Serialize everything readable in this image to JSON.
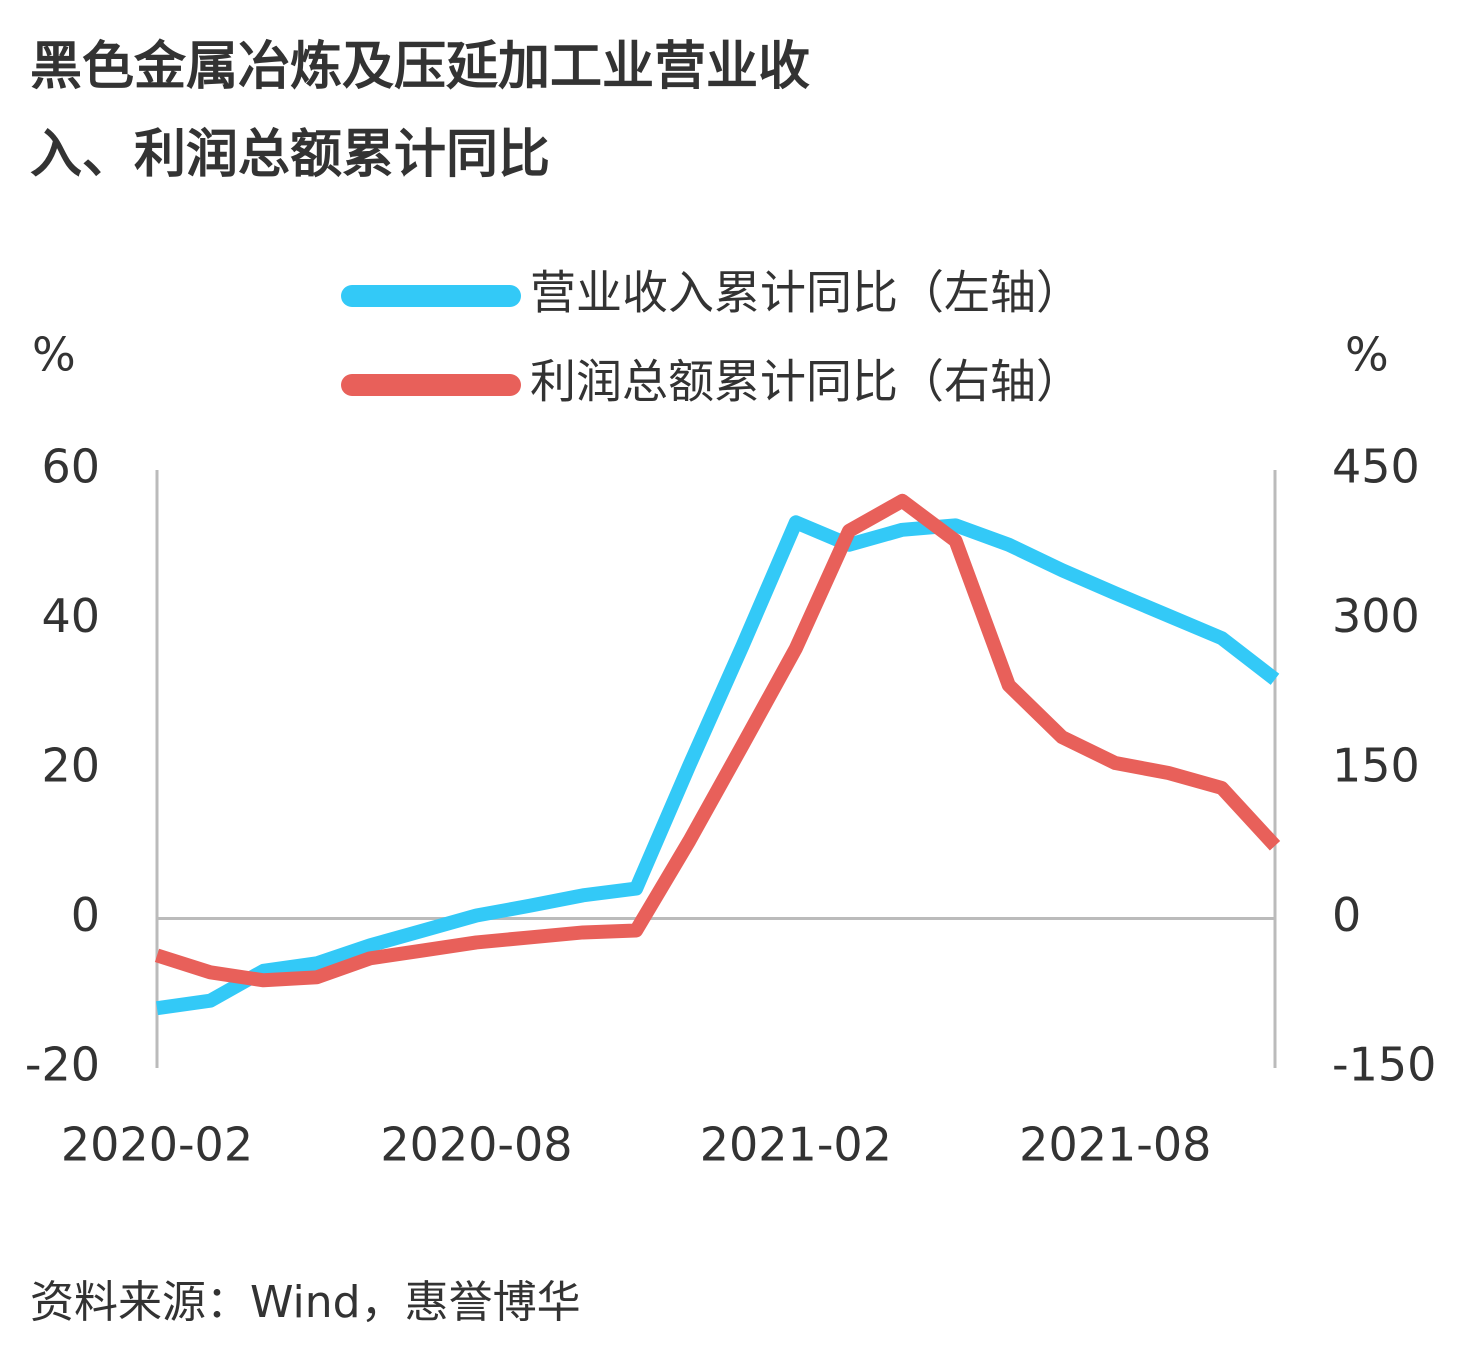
{
  "chart_data": {
    "type": "line",
    "title": "黑色金属冶炼及压延加工业营业收入、利润总额累计同比",
    "title_lines": [
      "黑色金属冶炼及压延加工业营业收",
      "入、利润总额累计同比"
    ],
    "y_label": "%",
    "y2_label": "%",
    "source": "资料来源：Wind，惠誉博华",
    "categories": [
      "2020-02",
      null,
      null,
      null,
      null,
      null,
      "2020-08",
      null,
      null,
      null,
      null,
      null,
      "2021-02",
      null,
      null,
      null,
      null,
      null,
      "2021-08",
      null,
      null,
      null
    ],
    "series": [
      {
        "name": "营业收入累计同比（左轴）",
        "color": "#33c9f7",
        "axis": "y",
        "values": [
          -12,
          -11,
          -7,
          -6,
          -3.6,
          -1.6,
          0.4,
          1.7,
          3.1,
          4,
          20.5,
          36.5,
          53,
          50,
          52,
          52.6,
          50,
          46.6,
          43.5,
          40.5,
          37.5,
          32
        ]
      },
      {
        "name": "利润总额累计同比（右轴）",
        "color": "#e8605a",
        "axis": "y2",
        "values": [
          -37,
          -54,
          -62,
          -59,
          -40,
          -32,
          -24,
          -19,
          -14,
          -12,
          78,
          174,
          271,
          389,
          419,
          379,
          234,
          182,
          156,
          146,
          131,
          73
        ]
      }
    ],
    "ylim": [
      -20,
      60
    ],
    "yticks": [
      60,
      40,
      20,
      0,
      -20
    ],
    "y2lim": [
      -150,
      450
    ],
    "y2ticks": [
      450,
      300,
      150,
      0,
      -150
    ]
  }
}
